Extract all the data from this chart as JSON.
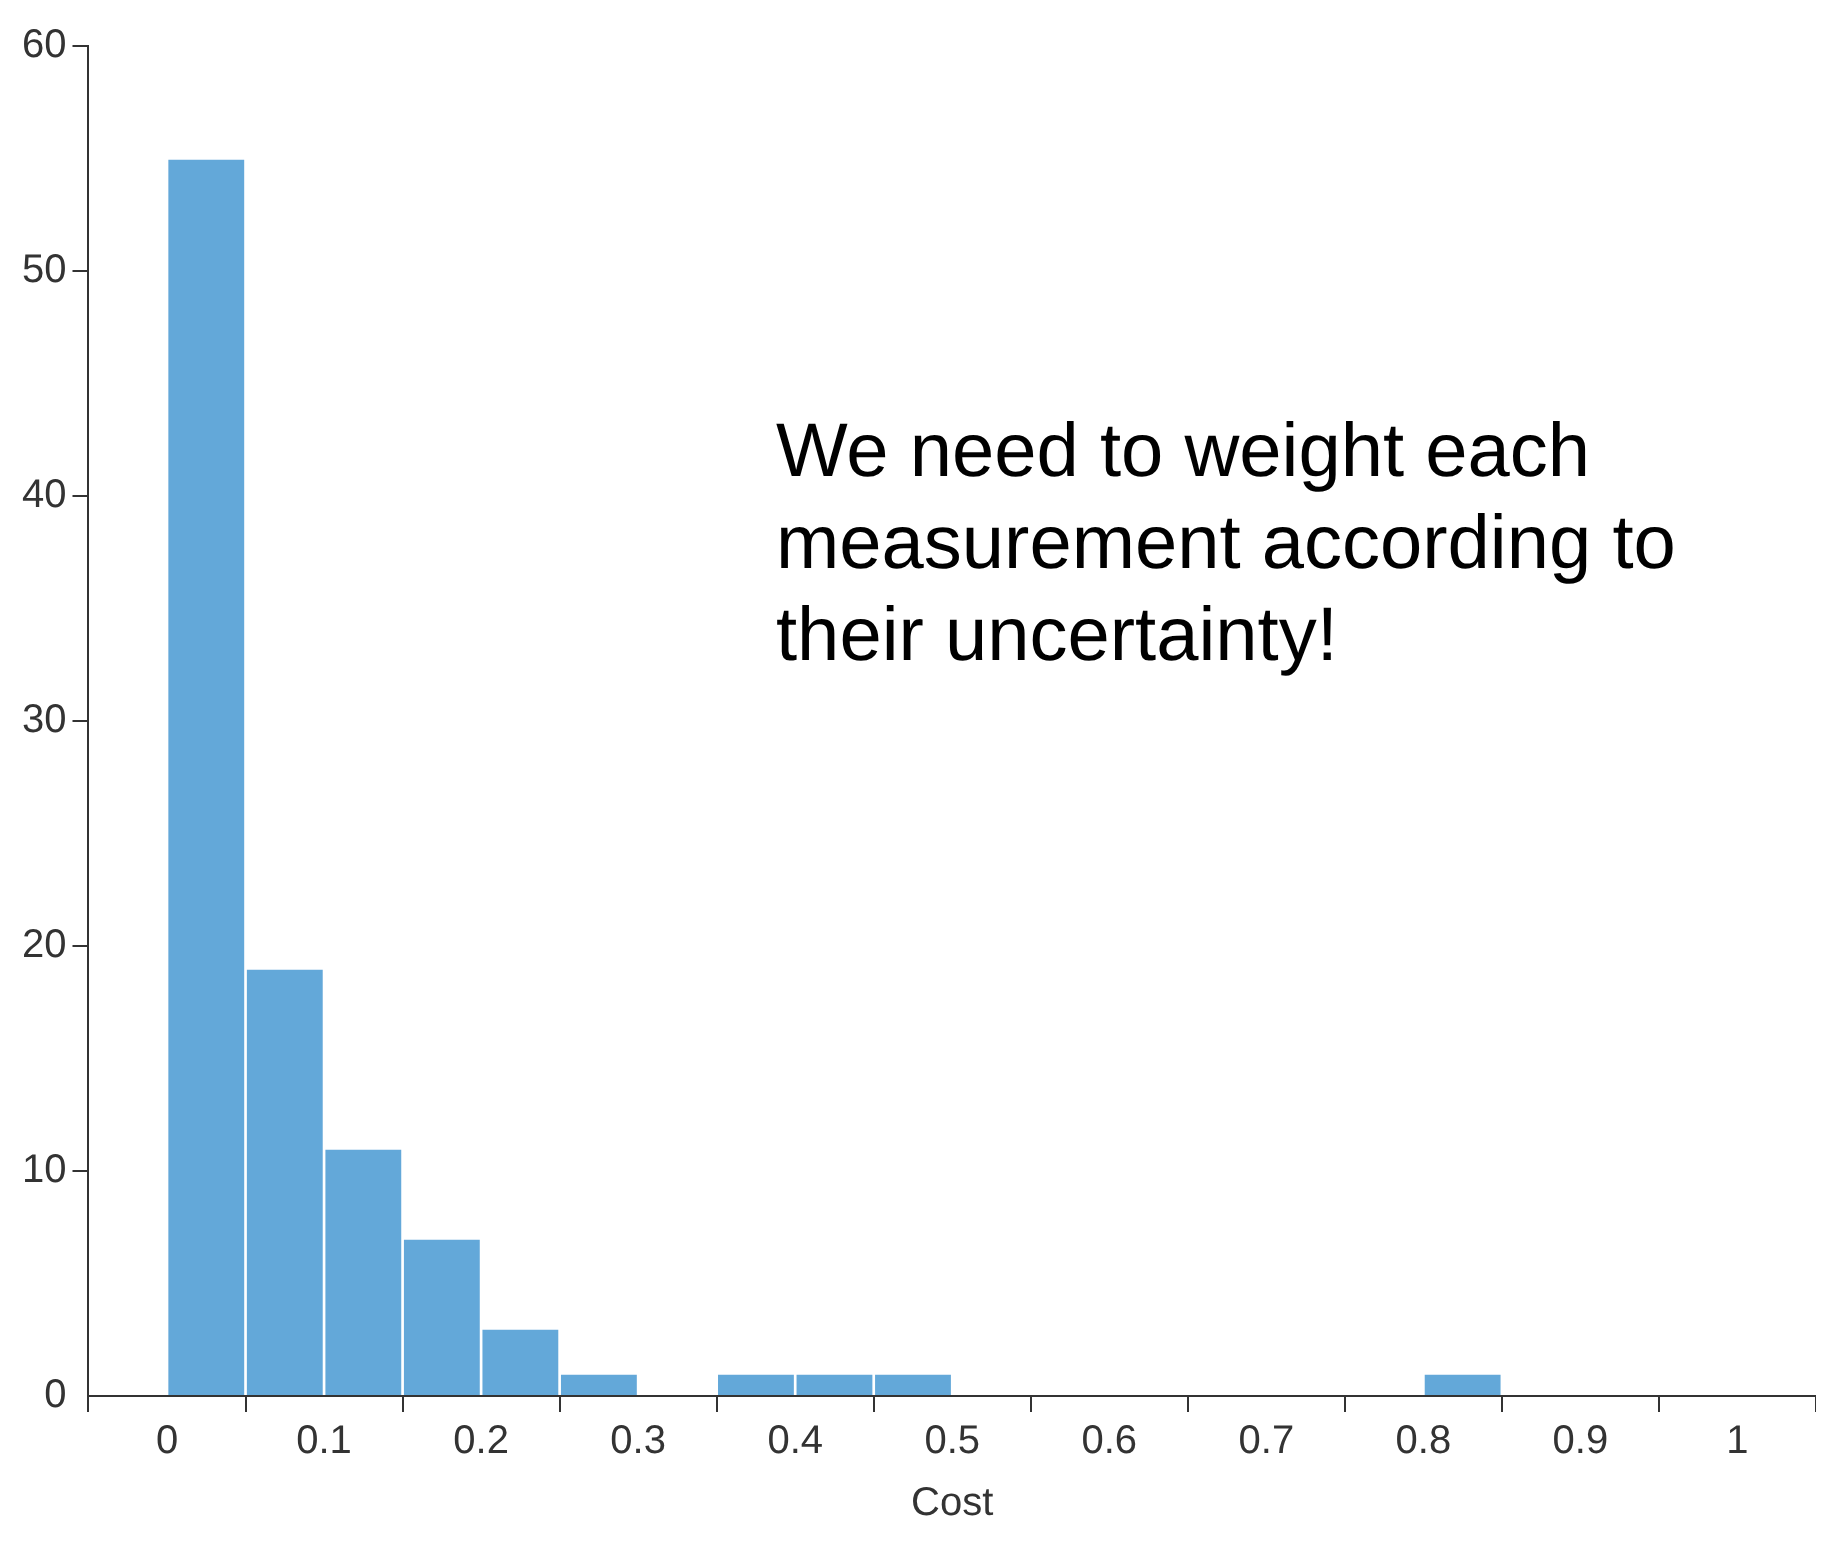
{
  "chart_data": {
    "type": "histogram",
    "xlabel": "Cost",
    "bins": [
      0,
      0.05,
      0.1,
      0.15,
      0.2,
      0.25,
      0.3,
      0.35,
      0.4,
      0.45,
      0.5,
      0.55,
      0.6,
      0.65,
      0.7,
      0.75,
      0.8,
      0.85
    ],
    "values": [
      55,
      19,
      11,
      7,
      3,
      1,
      0,
      1,
      1,
      1,
      0,
      0,
      0,
      0,
      0,
      0,
      1
    ],
    "color": "#63a8d9",
    "xlim": [
      -0.05,
      1.05
    ],
    "xticks": [
      0,
      0.1,
      0.2,
      0.3,
      0.4,
      0.5,
      0.6,
      0.7,
      0.8,
      0.9,
      1
    ],
    "ylim": [
      0,
      60
    ],
    "yticks": [
      0,
      10,
      20,
      30,
      40,
      50,
      60
    ],
    "annotations": [
      "We need to weight each measurement according to their uncertainty!"
    ]
  }
}
